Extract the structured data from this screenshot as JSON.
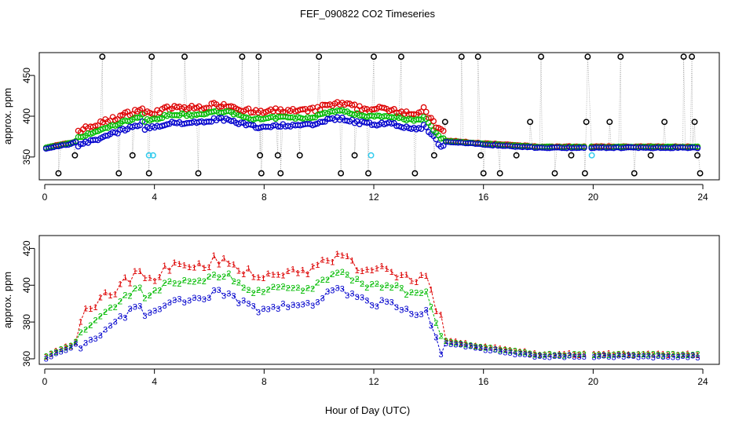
{
  "title": "FEF_090822  CO2 Timeseries",
  "xlabel": "Hour of Day (UTC)",
  "colors": {
    "s1": "#dd0000",
    "s2": "#00bb00",
    "s3": "#0000cc",
    "black": "#000000",
    "cyan": "#33ccee",
    "gray": "#999999"
  },
  "chart_data": [
    {
      "type": "scatter",
      "ylabel": "approx. ppm",
      "xlim": [
        -0.2,
        24.6
      ],
      "ylim": [
        322,
        478
      ],
      "xticks": [
        0,
        4,
        8,
        12,
        16,
        20,
        24
      ],
      "yticks": [
        350,
        400,
        450
      ],
      "description_series": [
        "1 (red)",
        "2 (green)",
        "3 (blue)",
        "outliers (black)",
        "flagged (cyan)"
      ],
      "flagged": [
        [
          3.8,
          352
        ],
        [
          3.95,
          352
        ],
        [
          11.9,
          352
        ],
        [
          19.95,
          352
        ]
      ],
      "spikes": [
        [
          0.5,
          330
        ],
        [
          1.1,
          352
        ],
        [
          2.1,
          473
        ],
        [
          2.7,
          330
        ],
        [
          3.2,
          352
        ],
        [
          3.8,
          330
        ],
        [
          3.9,
          473
        ],
        [
          5.1,
          473
        ],
        [
          5.6,
          330
        ],
        [
          7.2,
          473
        ],
        [
          7.8,
          473
        ],
        [
          7.85,
          352
        ],
        [
          7.9,
          330
        ],
        [
          8.5,
          352
        ],
        [
          8.6,
          330
        ],
        [
          9.3,
          352
        ],
        [
          10.0,
          473
        ],
        [
          10.8,
          330
        ],
        [
          11.3,
          352
        ],
        [
          11.8,
          330
        ],
        [
          12.0,
          473
        ],
        [
          13.0,
          473
        ],
        [
          13.5,
          330
        ],
        [
          14.2,
          352
        ],
        [
          14.6,
          393
        ],
        [
          15.2,
          473
        ],
        [
          15.8,
          473
        ],
        [
          15.9,
          352
        ],
        [
          16.0,
          330
        ],
        [
          16.6,
          330
        ],
        [
          17.2,
          352
        ],
        [
          17.7,
          393
        ],
        [
          18.1,
          473
        ],
        [
          18.6,
          330
        ],
        [
          19.2,
          352
        ],
        [
          19.7,
          330
        ],
        [
          19.75,
          393
        ],
        [
          19.8,
          473
        ],
        [
          20.6,
          393
        ],
        [
          21.0,
          473
        ],
        [
          21.5,
          330
        ],
        [
          22.1,
          352
        ],
        [
          22.6,
          393
        ],
        [
          23.3,
          473
        ],
        [
          23.6,
          473
        ],
        [
          23.7,
          393
        ],
        [
          23.8,
          352
        ],
        [
          23.9,
          330
        ]
      ]
    },
    {
      "type": "scatter",
      "ylabel": "approx. ppm",
      "xlim": [
        -0.2,
        24.6
      ],
      "ylim": [
        357,
        427
      ],
      "xticks": [
        0,
        4,
        8,
        12,
        16,
        20,
        24
      ],
      "yticks": [
        360,
        380,
        400,
        420
      ],
      "series_labels": [
        "1",
        "2",
        "3"
      ]
    }
  ]
}
